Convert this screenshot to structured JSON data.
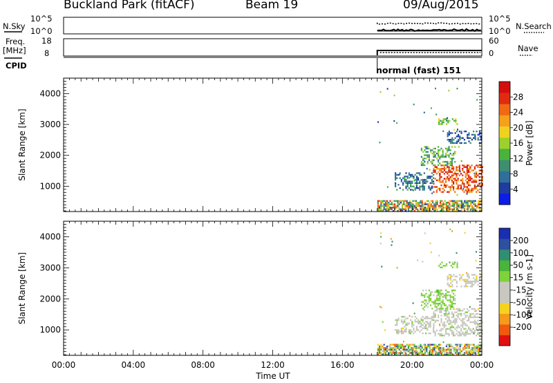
{
  "header": {
    "site": "Buckland Park (fitACF)",
    "beam": "Beam 19",
    "date": "09/Aug/2015"
  },
  "sky_panel": {
    "left_label": "N.Sky",
    "right_label": "N.Search",
    "left_ticks": [
      "10^5",
      "10^0"
    ],
    "right_ticks": [
      "10^5",
      "10^0"
    ]
  },
  "freq_panel": {
    "left_label_line1": "Freq.",
    "left_label_line2": "[MHz]",
    "right_label": "Nave",
    "left_ticks": [
      "18",
      "8"
    ],
    "right_ticks": [
      "60",
      "0"
    ]
  },
  "cpid": {
    "label": "CPID",
    "mode_text": "normal (fast) 151"
  },
  "x_axis": {
    "label": "Time UT",
    "ticks": [
      "00:00",
      "04:00",
      "08:00",
      "12:00",
      "16:00",
      "20:00",
      "00:00"
    ]
  },
  "chart_data": [
    {
      "type": "heatmap",
      "name": "Power",
      "ylabel": "Slant Range [km]",
      "xlabel": "Time UT",
      "xlim_hours": [
        0,
        24
      ],
      "ylim": [
        180,
        4500
      ],
      "yticks": [
        1000,
        2000,
        3000,
        4000
      ],
      "colorbar": {
        "label": "Power [dB]",
        "ticks": [
          "4",
          "8",
          "12",
          "16",
          "20",
          "24",
          "28"
        ],
        "colors": [
          "#0b1de6",
          "#1f3d9e",
          "#2f6f9a",
          "#3d8f6f",
          "#49b33c",
          "#9bd12a",
          "#f0d21e",
          "#f5a11a",
          "#f06a14",
          "#e02b10",
          "#d40e0e"
        ]
      },
      "data_start_hour": 18.0,
      "features": [
        {
          "name": "ground scatter",
          "t": [
            18.0,
            24.0
          ],
          "r": [
            200,
            550
          ],
          "level": "mixed"
        },
        {
          "name": "ionospheric scatter",
          "t": [
            21.2,
            24.0
          ],
          "r": [
            800,
            1700
          ],
          "level": 26
        },
        {
          "name": "ionospheric scatter",
          "t": [
            19.0,
            21.2
          ],
          "r": [
            900,
            1450
          ],
          "level": 8
        },
        {
          "name": "ionospheric scatter",
          "t": [
            20.5,
            22.5
          ],
          "r": [
            1700,
            2300
          ],
          "level": 12
        },
        {
          "name": "ionospheric scatter",
          "t": [
            22.0,
            24.0
          ],
          "r": [
            2400,
            2800
          ],
          "level": 6
        },
        {
          "name": "ionospheric scatter",
          "t": [
            21.5,
            22.6
          ],
          "r": [
            3000,
            3200
          ],
          "level": 14
        }
      ]
    },
    {
      "type": "heatmap",
      "name": "Velocity",
      "ylabel": "Slant Range [km]",
      "xlabel": "Time UT",
      "xlim_hours": [
        0,
        24
      ],
      "ylim": [
        180,
        4500
      ],
      "yticks": [
        1000,
        2000,
        3000,
        4000
      ],
      "colorbar": {
        "label": "Velocity [m s-1]",
        "ticks": [
          "-200",
          "-100",
          "-50",
          "-15",
          "15",
          "50",
          "100",
          "200"
        ],
        "colors": [
          "#e01010",
          "#f05a10",
          "#f59a1a",
          "#f5d21e",
          "#c8c8c0",
          "#c8c8c0",
          "#7ed23a",
          "#49b33c",
          "#2f8f6f",
          "#2f4fa0",
          "#1a2fb0"
        ]
      },
      "data_start_hour": 18.0,
      "features": [
        {
          "name": "ground scatter",
          "t": [
            18.0,
            24.0
          ],
          "r": [
            200,
            550
          ],
          "level": "mixed"
        },
        {
          "name": "ionospheric scatter",
          "t": [
            21.2,
            24.0
          ],
          "r": [
            800,
            1700
          ],
          "level": 0
        },
        {
          "name": "ionospheric scatter",
          "t": [
            19.0,
            21.2
          ],
          "r": [
            900,
            1450
          ],
          "level": 0
        },
        {
          "name": "ionospheric scatter",
          "t": [
            20.5,
            22.5
          ],
          "r": [
            1700,
            2300
          ],
          "level": 40
        },
        {
          "name": "ionospheric scatter",
          "t": [
            22.0,
            24.0
          ],
          "r": [
            2400,
            2800
          ],
          "level": -50
        },
        {
          "name": "ionospheric scatter",
          "t": [
            21.5,
            22.6
          ],
          "r": [
            3000,
            3200
          ],
          "level": 40
        }
      ]
    }
  ]
}
